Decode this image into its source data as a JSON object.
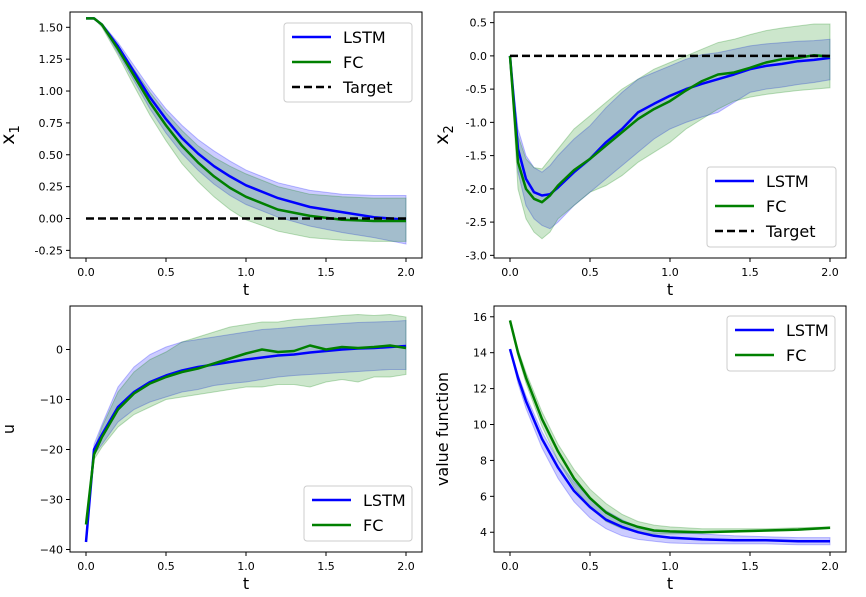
{
  "chart_data": [
    {
      "type": "line",
      "id": "x1",
      "xlabel": "t",
      "ylabel_main": "x",
      "ylabel_sub": "1",
      "xlim": [
        -0.1,
        2.1
      ],
      "ylim": [
        -0.31,
        1.62
      ],
      "xticks": [
        0.0,
        0.5,
        1.0,
        1.5,
        2.0
      ],
      "xtick_labels": [
        "0.0",
        "0.5",
        "1.0",
        "1.5",
        "2.0"
      ],
      "yticks": [
        1.5,
        1.25,
        1.0,
        0.75,
        0.5,
        0.25,
        0.0,
        -0.25
      ],
      "ytick_labels": [
        "1.50",
        "1.25",
        "1.00",
        "0.75",
        "0.50",
        "0.25",
        "0.00",
        "-0.25"
      ],
      "legend": {
        "position": "top-right",
        "entries": [
          "LSTM",
          "FC",
          "Target"
        ]
      },
      "x": [
        0,
        0.05,
        0.1,
        0.2,
        0.3,
        0.4,
        0.5,
        0.6,
        0.7,
        0.8,
        0.9,
        1.0,
        1.2,
        1.4,
        1.6,
        1.8,
        2.0
      ],
      "series": [
        {
          "name": "LSTM",
          "color": "#0000ff",
          "values": [
            1.57,
            1.57,
            1.52,
            1.35,
            1.15,
            0.95,
            0.78,
            0.63,
            0.51,
            0.41,
            0.33,
            0.26,
            0.16,
            0.09,
            0.05,
            0.01,
            -0.01
          ],
          "upper": [
            1.57,
            1.57,
            1.53,
            1.38,
            1.2,
            1.02,
            0.86,
            0.73,
            0.62,
            0.53,
            0.45,
            0.38,
            0.28,
            0.22,
            0.19,
            0.18,
            0.18
          ],
          "lower": [
            1.57,
            1.57,
            1.51,
            1.3,
            1.08,
            0.86,
            0.67,
            0.51,
            0.38,
            0.27,
            0.18,
            0.11,
            0.01,
            -0.06,
            -0.11,
            -0.15,
            -0.2
          ]
        },
        {
          "name": "FC",
          "color": "#008000",
          "values": [
            1.57,
            1.57,
            1.52,
            1.33,
            1.12,
            0.91,
            0.73,
            0.57,
            0.44,
            0.33,
            0.24,
            0.17,
            0.07,
            0.02,
            -0.01,
            -0.02,
            -0.02
          ],
          "upper": [
            1.57,
            1.57,
            1.53,
            1.36,
            1.17,
            0.99,
            0.83,
            0.69,
            0.57,
            0.48,
            0.41,
            0.35,
            0.25,
            0.19,
            0.17,
            0.16,
            0.16
          ],
          "lower": [
            1.57,
            1.57,
            1.5,
            1.28,
            1.04,
            0.81,
            0.61,
            0.43,
            0.29,
            0.17,
            0.07,
            -0.01,
            -0.1,
            -0.15,
            -0.17,
            -0.18,
            -0.18
          ]
        },
        {
          "name": "Target",
          "color": "#000000",
          "dashed": true,
          "values": [
            0,
            0,
            0,
            0,
            0,
            0,
            0,
            0,
            0,
            0,
            0,
            0,
            0,
            0,
            0,
            0,
            0
          ]
        }
      ]
    },
    {
      "type": "line",
      "id": "x2",
      "xlabel": "t",
      "ylabel_main": "x",
      "ylabel_sub": "2",
      "xlim": [
        -0.1,
        2.1
      ],
      "ylim": [
        -3.04,
        0.66
      ],
      "xticks": [
        0.0,
        0.5,
        1.0,
        1.5,
        2.0
      ],
      "xtick_labels": [
        "0.0",
        "0.5",
        "1.0",
        "1.5",
        "2.0"
      ],
      "yticks": [
        0.5,
        0.0,
        -0.5,
        -1.0,
        -1.5,
        -2.0,
        -2.5,
        -3.0
      ],
      "ytick_labels": [
        "0.5",
        "0.0",
        "-0.5",
        "-1.0",
        "-1.5",
        "-2.0",
        "-2.5",
        "-3.0"
      ],
      "legend": {
        "position": "bottom-right",
        "entries": [
          "LSTM",
          "FC",
          "Target"
        ]
      },
      "x": [
        0,
        0.05,
        0.1,
        0.15,
        0.2,
        0.25,
        0.3,
        0.4,
        0.5,
        0.6,
        0.7,
        0.8,
        0.9,
        1.0,
        1.1,
        1.2,
        1.3,
        1.4,
        1.5,
        1.6,
        1.7,
        1.8,
        1.9,
        2.0
      ],
      "series": [
        {
          "name": "LSTM",
          "color": "#0000ff",
          "values": [
            0.0,
            -1.4,
            -1.85,
            -2.05,
            -2.1,
            -2.08,
            -1.98,
            -1.75,
            -1.55,
            -1.3,
            -1.1,
            -0.85,
            -0.72,
            -0.6,
            -0.5,
            -0.42,
            -0.35,
            -0.28,
            -0.2,
            -0.15,
            -0.12,
            -0.08,
            -0.06,
            -0.03
          ],
          "upper": [
            0.0,
            -1.1,
            -1.5,
            -1.68,
            -1.75,
            -1.65,
            -1.5,
            -1.25,
            -1.05,
            -0.78,
            -0.55,
            -0.35,
            -0.25,
            -0.15,
            -0.05,
            0.02,
            0.05,
            0.1,
            0.15,
            0.18,
            0.2,
            0.22,
            0.23,
            0.25
          ],
          "lower": [
            0.0,
            -1.75,
            -2.25,
            -2.45,
            -2.55,
            -2.6,
            -2.5,
            -2.25,
            -2.05,
            -1.85,
            -1.65,
            -1.45,
            -1.25,
            -1.1,
            -1.0,
            -0.92,
            -0.85,
            -0.7,
            -0.55,
            -0.5,
            -0.47,
            -0.43,
            -0.4,
            -0.36
          ]
        },
        {
          "name": "FC",
          "color": "#008000",
          "values": [
            0.0,
            -1.6,
            -2.0,
            -2.15,
            -2.2,
            -2.1,
            -1.95,
            -1.72,
            -1.55,
            -1.35,
            -1.15,
            -0.95,
            -0.8,
            -0.68,
            -0.52,
            -0.38,
            -0.28,
            -0.25,
            -0.18,
            -0.1,
            -0.05,
            -0.03,
            0.01,
            -0.01
          ],
          "upper": [
            0.0,
            -1.2,
            -1.55,
            -1.68,
            -1.7,
            -1.55,
            -1.4,
            -1.1,
            -0.9,
            -0.7,
            -0.5,
            -0.35,
            -0.2,
            -0.1,
            0.0,
            0.1,
            0.2,
            0.25,
            0.32,
            0.38,
            0.42,
            0.45,
            0.48,
            0.48
          ],
          "lower": [
            0.0,
            -2.0,
            -2.45,
            -2.65,
            -2.75,
            -2.65,
            -2.45,
            -2.25,
            -2.05,
            -1.95,
            -1.8,
            -1.6,
            -1.45,
            -1.3,
            -1.1,
            -0.95,
            -0.8,
            -0.68,
            -0.62,
            -0.58,
            -0.55,
            -0.52,
            -0.5,
            -0.48
          ]
        },
        {
          "name": "Target",
          "color": "#000000",
          "dashed": true,
          "values": [
            0,
            0,
            0,
            0,
            0,
            0,
            0,
            0,
            0,
            0,
            0,
            0,
            0,
            0,
            0,
            0,
            0,
            0,
            0,
            0,
            0,
            0,
            0,
            0
          ]
        }
      ]
    },
    {
      "type": "line",
      "id": "u",
      "xlabel": "t",
      "ylabel_main": "u",
      "ylabel_sub": "",
      "xlim": [
        -0.1,
        2.1
      ],
      "ylim": [
        -40.5,
        8.7
      ],
      "xticks": [
        0.0,
        0.5,
        1.0,
        1.5,
        2.0
      ],
      "xtick_labels": [
        "0.0",
        "0.5",
        "1.0",
        "1.5",
        "2.0"
      ],
      "yticks": [
        0,
        -10,
        -20,
        -30,
        -40
      ],
      "ytick_labels": [
        "0",
        "−10",
        "−20",
        "−30",
        "−40"
      ],
      "legend": {
        "position": "bottom-right",
        "entries": [
          "LSTM",
          "FC"
        ]
      },
      "x": [
        0,
        0.05,
        0.1,
        0.2,
        0.3,
        0.4,
        0.5,
        0.6,
        0.7,
        0.8,
        0.9,
        1.0,
        1.1,
        1.2,
        1.3,
        1.4,
        1.5,
        1.6,
        1.7,
        1.8,
        1.9,
        2.0
      ],
      "series": [
        {
          "name": "LSTM",
          "color": "#0000ff",
          "values": [
            -38.5,
            -20.0,
            -17.0,
            -11.5,
            -8.5,
            -6.5,
            -5.2,
            -4.2,
            -3.5,
            -3.0,
            -2.5,
            -2.0,
            -1.6,
            -1.2,
            -1.0,
            -0.6,
            -0.3,
            0.0,
            0.2,
            0.3,
            0.5,
            0.7
          ],
          "upper": [
            -38.5,
            -19.0,
            -15.0,
            -7.5,
            -3.5,
            -1.0,
            0.5,
            1.5,
            2.0,
            2.5,
            3.0,
            3.5,
            4.0,
            4.2,
            4.5,
            4.8,
            5.0,
            5.2,
            5.4,
            5.5,
            5.6,
            5.8
          ],
          "lower": [
            -38.5,
            -21.0,
            -19.0,
            -14.5,
            -12.0,
            -10.5,
            -9.5,
            -8.5,
            -8.0,
            -7.2,
            -6.8,
            -6.5,
            -6.0,
            -5.5,
            -5.2,
            -5.0,
            -4.8,
            -4.6,
            -4.4,
            -4.2,
            -4.0,
            -4.0
          ]
        },
        {
          "name": "FC",
          "color": "#008000",
          "values": [
            -35.0,
            -21.0,
            -17.5,
            -12.0,
            -8.8,
            -6.8,
            -5.5,
            -4.5,
            -3.8,
            -2.8,
            -1.8,
            -0.8,
            0.0,
            -0.5,
            -0.3,
            0.8,
            0.0,
            0.5,
            0.3,
            0.5,
            0.8,
            0.3
          ],
          "upper": [
            -35.0,
            -20.0,
            -15.5,
            -8.5,
            -4.5,
            -2.0,
            -0.5,
            1.5,
            2.5,
            3.5,
            4.5,
            5.0,
            5.5,
            5.5,
            6.0,
            6.2,
            6.5,
            6.8,
            7.0,
            6.8,
            7.0,
            6.5
          ],
          "lower": [
            -35.0,
            -22.0,
            -19.5,
            -15.5,
            -13.0,
            -11.5,
            -10.0,
            -9.5,
            -9.0,
            -8.5,
            -8.0,
            -7.5,
            -7.5,
            -7.0,
            -7.0,
            -7.5,
            -6.5,
            -6.0,
            -6.5,
            -5.5,
            -5.5,
            -5.0
          ]
        }
      ]
    },
    {
      "type": "line",
      "id": "value",
      "xlabel": "t",
      "ylabel_main": "value function",
      "ylabel_sub": "",
      "xlim": [
        -0.1,
        2.1
      ],
      "ylim": [
        2.9,
        16.6
      ],
      "xticks": [
        0.0,
        0.5,
        1.0,
        1.5,
        2.0
      ],
      "xtick_labels": [
        "0.0",
        "0.5",
        "1.0",
        "1.5",
        "2.0"
      ],
      "yticks": [
        16,
        14,
        12,
        10,
        8,
        6,
        4
      ],
      "ytick_labels": [
        "16",
        "14",
        "12",
        "10",
        "8",
        "6",
        "4"
      ],
      "legend": {
        "position": "top-right",
        "entries": [
          "LSTM",
          "FC"
        ]
      },
      "x": [
        0,
        0.05,
        0.1,
        0.2,
        0.3,
        0.4,
        0.5,
        0.6,
        0.7,
        0.8,
        0.9,
        1.0,
        1.2,
        1.4,
        1.6,
        1.8,
        2.0
      ],
      "series": [
        {
          "name": "LSTM",
          "color": "#0000ff",
          "values": [
            14.2,
            12.6,
            11.3,
            9.2,
            7.6,
            6.3,
            5.4,
            4.7,
            4.3,
            4.0,
            3.8,
            3.7,
            3.6,
            3.55,
            3.55,
            3.5,
            3.5
          ],
          "upper": [
            14.2,
            12.8,
            11.6,
            9.6,
            8.0,
            6.8,
            5.9,
            5.2,
            4.7,
            4.3,
            4.1,
            4.0,
            3.9,
            3.8,
            3.75,
            3.7,
            3.7
          ],
          "lower": [
            14.2,
            12.3,
            10.9,
            8.7,
            7.0,
            5.7,
            4.8,
            4.2,
            3.8,
            3.6,
            3.5,
            3.4,
            3.35,
            3.35,
            3.35,
            3.3,
            3.3
          ]
        },
        {
          "name": "FC",
          "color": "#008000",
          "values": [
            15.8,
            14.0,
            12.6,
            10.3,
            8.5,
            7.0,
            5.9,
            5.1,
            4.6,
            4.3,
            4.1,
            4.05,
            4.0,
            4.05,
            4.1,
            4.15,
            4.25
          ],
          "upper": [
            15.8,
            14.2,
            12.9,
            10.7,
            8.9,
            7.5,
            6.4,
            5.6,
            5.0,
            4.6,
            4.4,
            4.3,
            4.2,
            4.2,
            4.2,
            4.25,
            4.3
          ],
          "lower": [
            15.8,
            13.8,
            12.3,
            9.9,
            8.0,
            6.5,
            5.4,
            4.6,
            4.2,
            4.0,
            3.9,
            3.9,
            3.95,
            4.0,
            4.05,
            4.1,
            4.2
          ]
        }
      ]
    }
  ]
}
